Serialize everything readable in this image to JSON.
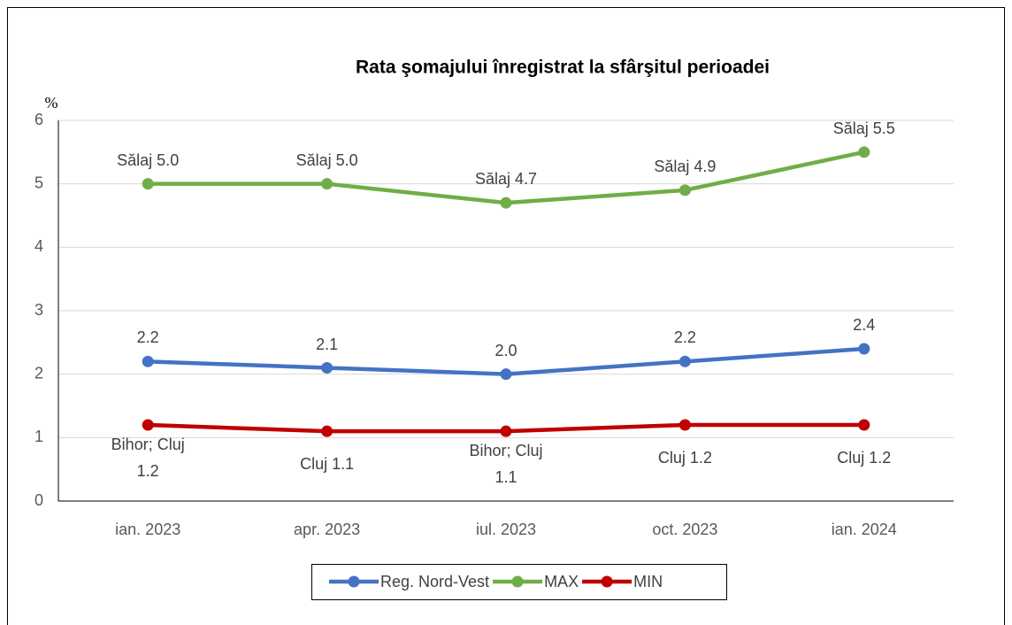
{
  "chart_data": {
    "type": "line",
    "title": "Rata şomajului înregistrat la sfârşitul perioadei",
    "y_axis_label": "%",
    "categories": [
      "ian. 2023",
      "apr. 2023",
      "iul. 2023",
      "oct. 2023",
      "ian. 2024"
    ],
    "series": [
      {
        "name": "Reg. Nord-Vest",
        "color": "#4472c4",
        "values": [
          2.2,
          2.1,
          2.0,
          2.2,
          2.4
        ],
        "value_labels": [
          "2.2",
          "2.1",
          "2.0",
          "2.2",
          "2.4"
        ],
        "label_position": "above"
      },
      {
        "name": "MAX",
        "color": "#70ad47",
        "values": [
          5.0,
          5.0,
          4.7,
          4.9,
          5.5
        ],
        "value_labels": [
          "Sălaj 5.0",
          "Sălaj 5.0",
          "Sălaj 4.7",
          "Sălaj 4.9",
          "Sălaj 5.5"
        ],
        "label_position": "above"
      },
      {
        "name": "MIN",
        "color": "#c00000",
        "values": [
          1.2,
          1.1,
          1.1,
          1.2,
          1.2
        ],
        "value_labels": [
          "Bihor; Cluj 1.2",
          "Cluj 1.1",
          "Bihor; Cluj 1.1",
          "Cluj 1.2",
          "Cluj 1.2"
        ],
        "label_position": "below"
      }
    ],
    "ylim": [
      0,
      6
    ],
    "yticks": [
      0,
      1,
      2,
      3,
      4,
      5,
      6
    ],
    "grid": true,
    "legend": "bottom"
  }
}
